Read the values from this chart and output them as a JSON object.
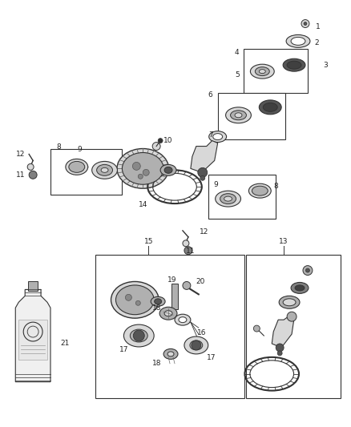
{
  "bg_color": "#ffffff",
  "fig_width": 4.38,
  "fig_height": 5.33,
  "dpi": 100,
  "line_color": "#333333",
  "text_color": "#222222",
  "font_size": 6.5,
  "gray_light": "#d8d8d8",
  "gray_med": "#b0b0b0",
  "gray_dark": "#808080",
  "gray_darker": "#555555"
}
